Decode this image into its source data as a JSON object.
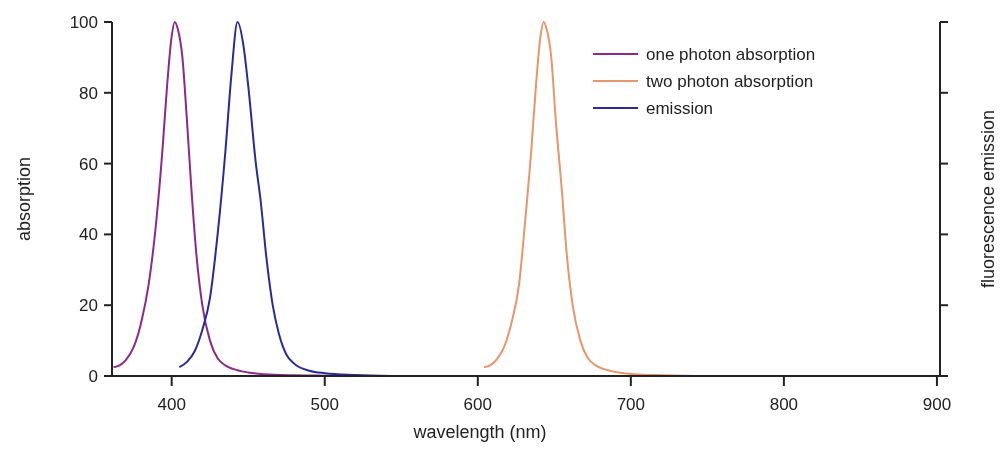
{
  "chart_data": {
    "type": "line",
    "xlabel": "wavelength (nm)",
    "ylabel": "absorption",
    "y2label": "fluorescence emission",
    "xlim": [
      361,
      902
    ],
    "xticks": [
      400,
      500,
      600,
      700,
      800,
      900
    ],
    "ylim": [
      0,
      100
    ],
    "yticks": [
      0,
      20,
      40,
      60,
      80,
      100
    ],
    "tick_labels": "xy",
    "legend": "top right",
    "line_style": "solid",
    "marker": "none",
    "series": [
      {
        "name": "one photon absorption",
        "color": "#8b2a8a",
        "x": [
          362,
          366,
          370,
          375,
          380,
          385,
          390,
          394,
          397,
          400,
          402,
          404,
          407,
          410,
          413,
          416,
          420,
          425,
          430,
          435,
          440,
          450,
          460,
          480,
          500,
          545
        ],
        "values": [
          2.5,
          3,
          4.5,
          8,
          15,
          26,
          44,
          64,
          82,
          96,
          100,
          98,
          90,
          72,
          52,
          35,
          20,
          10,
          5,
          3,
          2,
          1,
          0.5,
          0.2,
          0.1,
          0
        ]
      },
      {
        "name": "two photon absorption",
        "color": "#e8956a",
        "x": [
          604,
          608,
          612,
          617,
          622,
          627,
          631,
          635,
          638,
          641,
          643,
          645,
          648,
          651,
          655,
          658,
          662,
          667,
          672,
          677,
          682,
          692,
          702,
          722,
          742
        ],
        "values": [
          2.5,
          3,
          4.5,
          8,
          15,
          26,
          44,
          64,
          82,
          96,
          100,
          98,
          90,
          72,
          52,
          35,
          20,
          10,
          5,
          3,
          2,
          1,
          0.5,
          0.2,
          0
        ]
      },
      {
        "name": "emission",
        "color": "#2a2a9a",
        "x": [
          405,
          410,
          415,
          420,
          425,
          430,
          435,
          439,
          443,
          447,
          450,
          455,
          458,
          462,
          466,
          470,
          475,
          480,
          490,
          500,
          520,
          544
        ],
        "values": [
          2.5,
          4,
          7,
          13,
          22,
          40,
          63,
          85,
          100,
          93,
          82,
          60,
          50,
          33,
          20,
          12,
          6,
          3.5,
          1.5,
          0.8,
          0.3,
          0
        ]
      }
    ]
  }
}
